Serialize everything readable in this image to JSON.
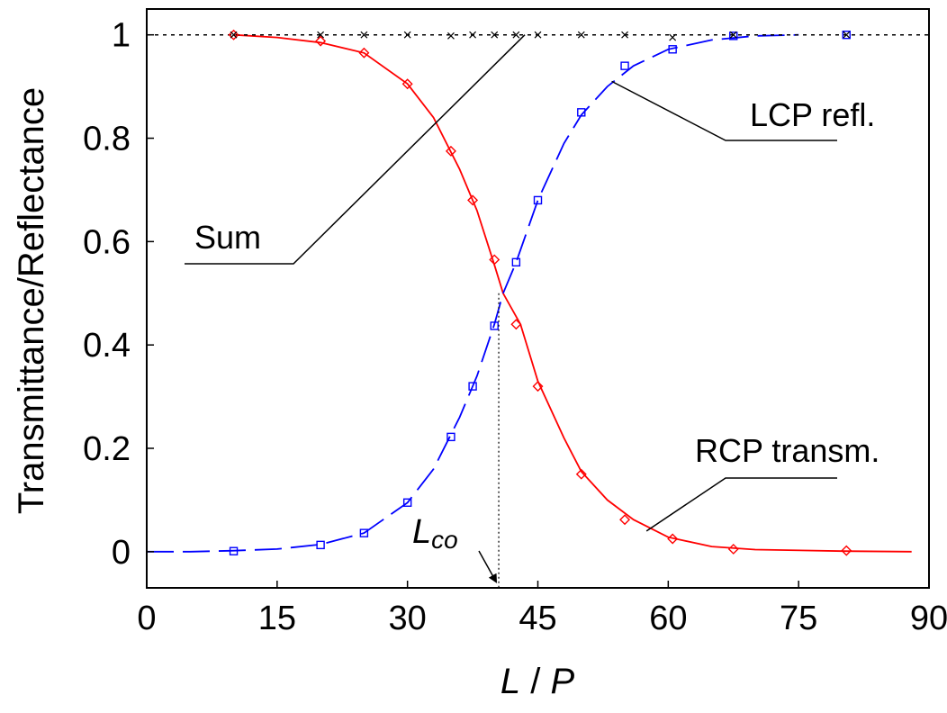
{
  "chart_data": {
    "type": "line",
    "xlabel": "L / P",
    "xlabel_parts": [
      "L",
      " / ",
      "P"
    ],
    "ylabel": "Transmittance/Reflectance",
    "xlim": [
      0,
      90
    ],
    "ylim": [
      -0.07,
      1.05
    ],
    "xticks": [
      0,
      15,
      30,
      45,
      60,
      75,
      90
    ],
    "xtick_labels": [
      "0",
      "15",
      "30",
      "45",
      "60",
      "75",
      "90"
    ],
    "yticks": [
      0,
      0.2,
      0.4,
      0.6,
      0.8,
      1
    ],
    "ytick_labels": [
      "0",
      "0.2",
      "0.4",
      "0.6",
      "0.8",
      "1"
    ],
    "grid": false,
    "crossover_x": 40.5,
    "series": [
      {
        "name": "RCP transm.",
        "color": "#ff0000",
        "marker": "diamond",
        "line_style": "solid",
        "curve_x": [
          10,
          15,
          20,
          25,
          30,
          33,
          36,
          38,
          40,
          41,
          43,
          45,
          48,
          50,
          53,
          56,
          60,
          65,
          70,
          80,
          88
        ],
        "curve_y": [
          1.0,
          0.995,
          0.985,
          0.965,
          0.905,
          0.84,
          0.74,
          0.66,
          0.555,
          0.5,
          0.44,
          0.33,
          0.22,
          0.155,
          0.1,
          0.062,
          0.028,
          0.01,
          0.004,
          0.001,
          0.0
        ],
        "x": [
          10,
          20,
          25,
          30,
          35,
          37.5,
          40,
          42.5,
          45,
          50,
          55,
          60.5,
          67.5,
          80.5
        ],
        "y": [
          1.0,
          0.988,
          0.965,
          0.905,
          0.775,
          0.68,
          0.565,
          0.44,
          0.32,
          0.15,
          0.062,
          0.025,
          0.005,
          0.002
        ]
      },
      {
        "name": "LCP refl.",
        "color": "#0000ff",
        "marker": "square",
        "line_style": "dash",
        "curve_x": [
          0,
          5,
          10,
          15,
          20,
          25,
          30,
          33,
          36,
          38,
          40,
          41,
          42.5,
          45,
          48,
          50,
          53,
          56,
          60,
          65,
          70,
          75
        ],
        "curve_y": [
          0.0,
          0.0,
          0.002,
          0.005,
          0.014,
          0.036,
          0.095,
          0.16,
          0.26,
          0.34,
          0.44,
          0.5,
          0.56,
          0.68,
          0.79,
          0.845,
          0.9,
          0.94,
          0.972,
          0.99,
          0.998,
          1.0
        ],
        "x": [
          10,
          20,
          25,
          30,
          35,
          37.5,
          40,
          42.5,
          45,
          50,
          55,
          60.5,
          67.5,
          80.5
        ],
        "y": [
          0.001,
          0.013,
          0.036,
          0.095,
          0.222,
          0.32,
          0.437,
          0.56,
          0.68,
          0.85,
          0.94,
          0.972,
          0.998,
          1.0
        ]
      },
      {
        "name": "Sum",
        "color": "#000000",
        "marker": "cross",
        "line_style": "dot",
        "curve_x": [
          0,
          90
        ],
        "curve_y": [
          1.0,
          1.0
        ],
        "x": [
          10,
          20,
          25,
          30,
          35,
          37.5,
          40,
          42.5,
          45,
          50,
          55,
          60.5,
          67.5,
          80.5
        ],
        "y": [
          1.0,
          1.0,
          1.0,
          1.0,
          0.998,
          1.0,
          1.0,
          1.0,
          1.0,
          1.0,
          1.0,
          0.995,
          1.0,
          1.0
        ]
      }
    ],
    "annotations": [
      {
        "key": "sum",
        "text": "Sum",
        "target": [
          43.5,
          1.0
        ]
      },
      {
        "key": "lcp",
        "text": "LCP refl.",
        "target": [
          53.5,
          0.91
        ]
      },
      {
        "key": "rcp",
        "text": "RCP transm.",
        "target": [
          57.5,
          0.04
        ]
      },
      {
        "key": "lco",
        "text": "L",
        "subscript": "co",
        "target": [
          40.5,
          -0.065
        ]
      }
    ]
  }
}
